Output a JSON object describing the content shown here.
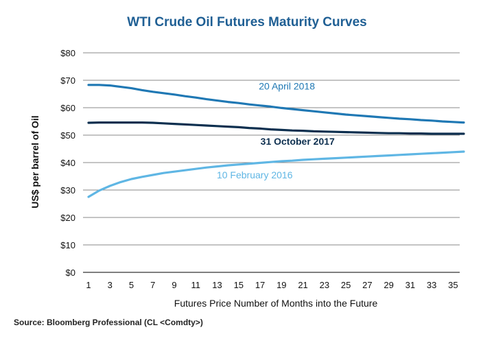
{
  "title": "WTI Crude Oil Futures Maturity Curves",
  "source": "Source: Bloomberg Professional (CL <Comdty>)",
  "chart_data": {
    "type": "line",
    "title": "WTI Crude Oil Futures Maturity Curves",
    "xlabel": "Futures Price Number of Months into the Future",
    "ylabel": "US$ per barrel of Oil",
    "xlim": [
      1,
      36
    ],
    "ylim": [
      0,
      80
    ],
    "x": [
      1,
      2,
      3,
      4,
      5,
      6,
      7,
      8,
      9,
      10,
      11,
      12,
      13,
      14,
      15,
      16,
      17,
      18,
      19,
      20,
      21,
      22,
      23,
      24,
      25,
      26,
      27,
      28,
      29,
      30,
      31,
      32,
      33,
      34,
      35,
      36
    ],
    "xticks": [
      1,
      3,
      5,
      7,
      9,
      11,
      13,
      15,
      17,
      19,
      21,
      23,
      25,
      27,
      29,
      31,
      33,
      35
    ],
    "yticks": [
      0,
      10,
      20,
      30,
      40,
      50,
      60,
      70,
      80
    ],
    "ytick_labels": [
      "$0",
      "$10",
      "$20",
      "$30",
      "$40",
      "$50",
      "$60",
      "$70",
      "$80"
    ],
    "grid": true,
    "series": [
      {
        "name": "20 April 2018",
        "color": "#1f78b4",
        "values": [
          68.3,
          68.3,
          68.1,
          67.6,
          67.1,
          66.4,
          65.8,
          65.3,
          64.8,
          64.2,
          63.7,
          63.1,
          62.6,
          62.1,
          61.7,
          61.2,
          60.8,
          60.4,
          59.9,
          59.5,
          59.1,
          58.7,
          58.3,
          57.9,
          57.5,
          57.2,
          56.9,
          56.6,
          56.3,
          56.0,
          55.8,
          55.5,
          55.3,
          55.0,
          54.8,
          54.6
        ]
      },
      {
        "name": "31 October 2017",
        "color": "#0d2f4f",
        "values": [
          54.5,
          54.6,
          54.6,
          54.6,
          54.6,
          54.6,
          54.5,
          54.3,
          54.1,
          53.9,
          53.7,
          53.5,
          53.3,
          53.1,
          52.9,
          52.6,
          52.4,
          52.1,
          51.9,
          51.7,
          51.6,
          51.4,
          51.3,
          51.2,
          51.1,
          51.0,
          50.9,
          50.8,
          50.7,
          50.7,
          50.6,
          50.6,
          50.5,
          50.5,
          50.5,
          50.5
        ]
      },
      {
        "name": "10 February 2016",
        "color": "#5fb6e4",
        "values": [
          27.5,
          29.8,
          31.5,
          32.9,
          34.0,
          34.8,
          35.5,
          36.2,
          36.7,
          37.2,
          37.7,
          38.2,
          38.6,
          39.0,
          39.3,
          39.6,
          39.9,
          40.2,
          40.5,
          40.7,
          41.0,
          41.2,
          41.4,
          41.6,
          41.8,
          42.0,
          42.2,
          42.4,
          42.6,
          42.8,
          43.0,
          43.2,
          43.4,
          43.6,
          43.8,
          44.0
        ]
      }
    ],
    "annotations": [
      "20 April 2018",
      "31 October 2017",
      "10 February 2016"
    ]
  }
}
